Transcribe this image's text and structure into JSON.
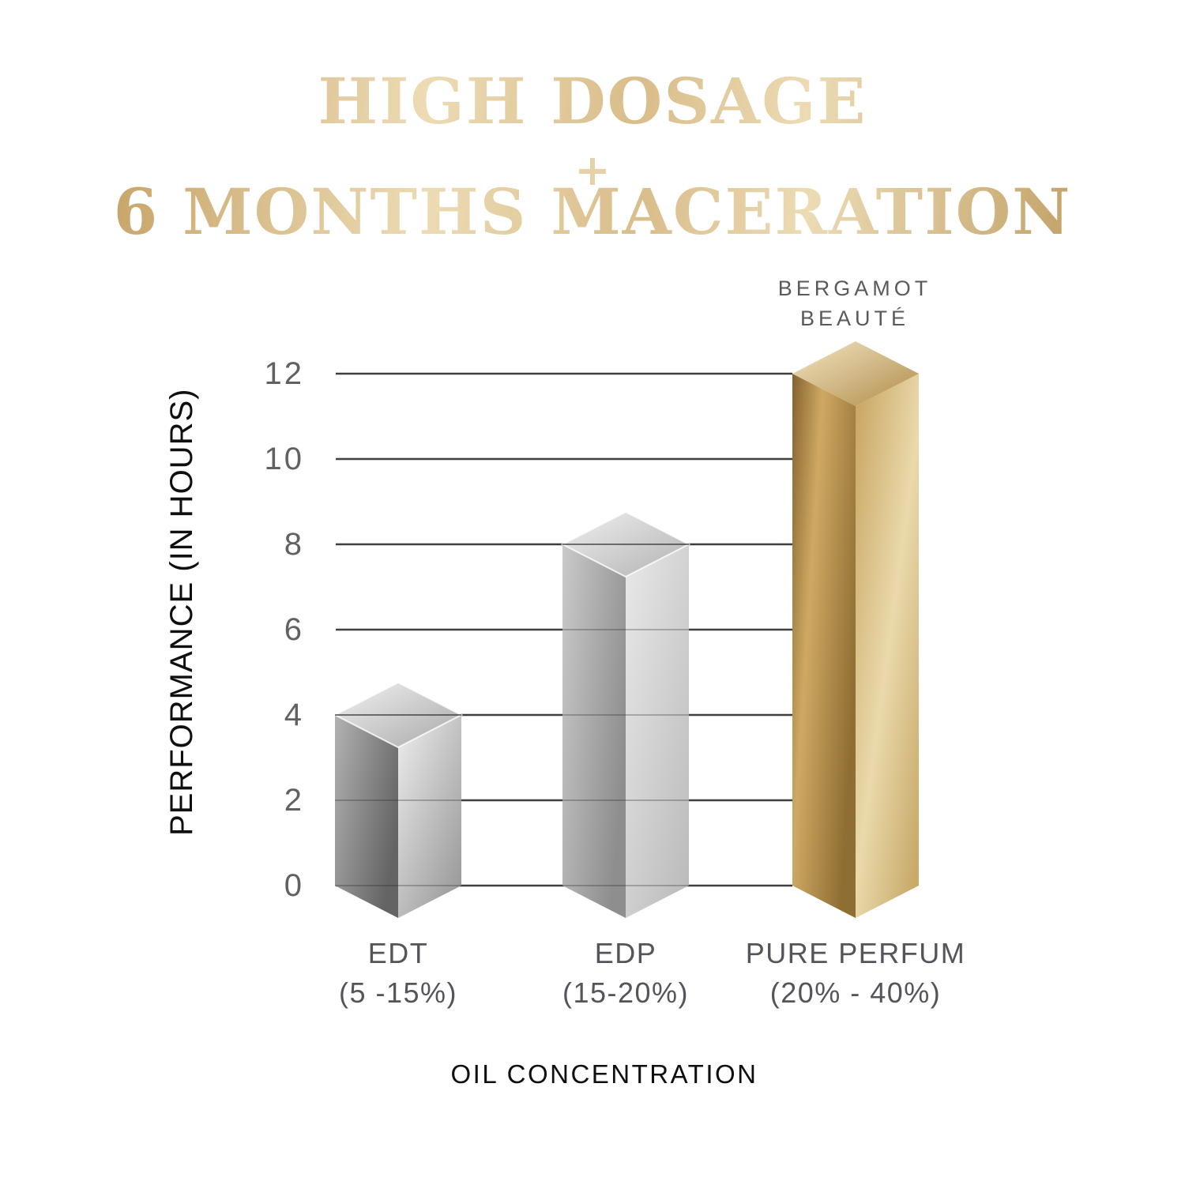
{
  "title": {
    "line1": "HIGH DOSAGE",
    "plus": "+",
    "line2": "6 MONTHS MACERATION"
  },
  "annotation": {
    "line1": "BERGAMOT",
    "line2": "BEAUTÉ"
  },
  "axes": {
    "y_label": "PERFORMANCE (IN HOURS)",
    "x_label": "OIL CONCENTRATION"
  },
  "chart_data": {
    "type": "bar",
    "title": "HIGH DOSAGE + 6 MONTHS MACERATION",
    "xlabel": "OIL CONCENTRATION",
    "ylabel": "PERFORMANCE (IN HOURS)",
    "categories": [
      "EDT",
      "EDP",
      "PURE PERFUM"
    ],
    "category_ranges": [
      "(5 -15%)",
      "(15-20%)",
      "(20% - 40%)"
    ],
    "values": [
      4,
      8,
      12
    ],
    "yticks": [
      0,
      2,
      4,
      6,
      8,
      10,
      12
    ],
    "ytick_labels": [
      "0",
      "2",
      "4",
      "6",
      "8",
      "10",
      "12"
    ],
    "ylim": [
      0,
      12
    ],
    "grid": "horizontal",
    "legend": "none",
    "bar_styles": [
      "silver_dark",
      "silver_light",
      "gold"
    ],
    "annotation": {
      "text": "BERGAMOT BEAUTÉ",
      "target": "PURE PERFUM"
    }
  },
  "colors": {
    "title_gold_dark": "#bb914f",
    "title_gold_dark2": "#b18a49",
    "title_gold_mid": "#d9bd8a",
    "title_gold_light": "#ecdbb4",
    "title_gold_plus": "#e5d2a8",
    "grid_line": "#3e3e3e",
    "tick_label": "#606164",
    "category_label": "#54555a",
    "annotation_label": "#595a5c",
    "axis_title": "#0f0f0f",
    "silver_dark": {
      "top_a": "#f2f2f2",
      "top_b": "#a8a8a8",
      "left_a": "#b2b2b2",
      "left_b": "#646464",
      "right_a": "#eeeeee",
      "right_b": "#999999"
    },
    "silver_light": {
      "top_a": "#f0f0f0",
      "top_b": "#b2b2b2",
      "left_a": "#cacaca",
      "left_b": "#8e8e8e",
      "right_a": "#e9e9e9",
      "right_b": "#bcbcbc"
    },
    "gold": {
      "top_a": "#f2e5c4",
      "top_b": "#b18c48",
      "left_a": "#83632e",
      "left_mid": "#cfa963",
      "left_b": "#8f6e33",
      "right_a": "#c7a35f",
      "right_mid": "#ead9ab",
      "right_b": "#c8aa6a"
    }
  }
}
